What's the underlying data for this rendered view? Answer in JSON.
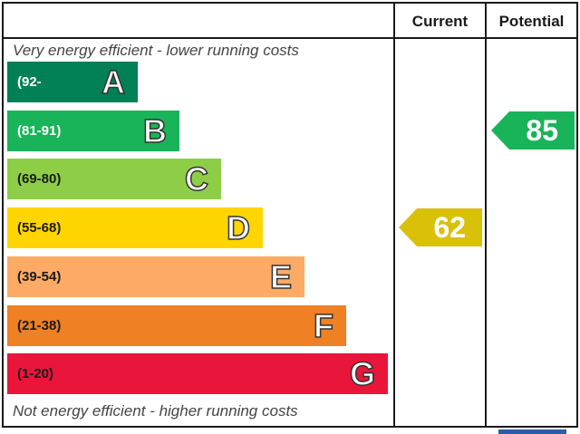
{
  "header": {
    "current_label": "Current",
    "potential_label": "Potential"
  },
  "notes": {
    "top": "Very energy efficient - lower running costs",
    "bottom": "Not energy efficient - higher running costs"
  },
  "chart_data": {
    "type": "bar",
    "categories": [
      "A",
      "B",
      "C",
      "D",
      "E",
      "F",
      "G"
    ],
    "ranges": [
      "(92-",
      "(81-91)",
      "(69-80)",
      "(55-68)",
      "(39-54)",
      "(21-38)",
      "(1-20)"
    ],
    "colors": [
      "#008054",
      "#19b459",
      "#8dce46",
      "#ffd500",
      "#fcaa65",
      "#ef8023",
      "#e9153b"
    ],
    "range_text_colors": [
      "#ffffff",
      "#ffffff",
      "#1a1a1a",
      "#1a1a1a",
      "#1a1a1a",
      "#1a1a1a",
      "#1a1a1a"
    ],
    "current": {
      "value": 62,
      "band": "D",
      "color": "#d9c10a"
    },
    "potential": {
      "value": 85,
      "band": "B",
      "color": "#19b459"
    }
  }
}
